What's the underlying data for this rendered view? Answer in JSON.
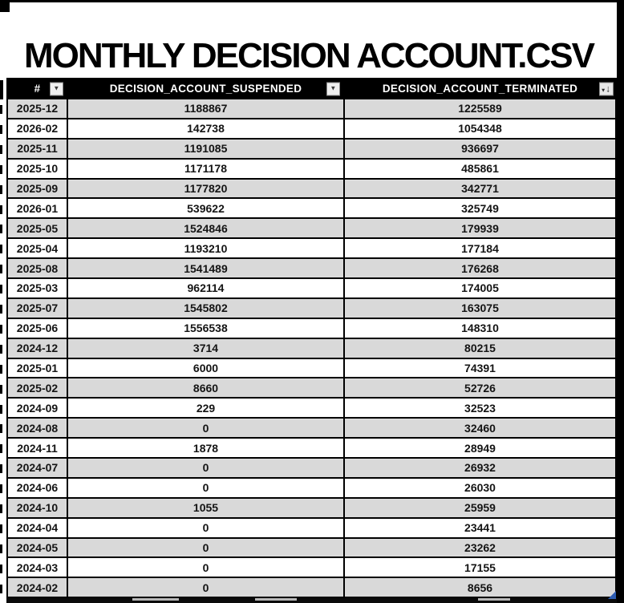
{
  "page": {
    "title": "MONTHLY DECISION ACCOUNT.CSV"
  },
  "icons": {
    "filter_arrow": "▼",
    "sort_tri": "▾",
    "sort_arrow": "↓"
  },
  "table": {
    "columns": [
      {
        "label": "#",
        "control": "filter-dropdown"
      },
      {
        "label": "DECISION_ACCOUNT_SUSPENDED",
        "control": "filter-dropdown"
      },
      {
        "label": "DECISION_ACCOUNT_TERMINATED",
        "control": "sort-descending"
      }
    ],
    "rows": [
      [
        "2025-12",
        "1188867",
        "1225589"
      ],
      [
        "2026-02",
        "142738",
        "1054348"
      ],
      [
        "2025-11",
        "1191085",
        "936697"
      ],
      [
        "2025-10",
        "1171178",
        "485861"
      ],
      [
        "2025-09",
        "1177820",
        "342771"
      ],
      [
        "2026-01",
        "539622",
        "325749"
      ],
      [
        "2025-05",
        "1524846",
        "179939"
      ],
      [
        "2025-04",
        "1193210",
        "177184"
      ],
      [
        "2025-08",
        "1541489",
        "176268"
      ],
      [
        "2025-03",
        "962114",
        "174005"
      ],
      [
        "2025-07",
        "1545802",
        "163075"
      ],
      [
        "2025-06",
        "1556538",
        "148310"
      ],
      [
        "2024-12",
        "3714",
        "80215"
      ],
      [
        "2025-01",
        "6000",
        "74391"
      ],
      [
        "2025-02",
        "8660",
        "52726"
      ],
      [
        "2024-09",
        "229",
        "32523"
      ],
      [
        "2024-08",
        "0",
        "32460"
      ],
      [
        "2024-11",
        "1878",
        "28949"
      ],
      [
        "2024-07",
        "0",
        "26932"
      ],
      [
        "2024-06",
        "0",
        "26030"
      ],
      [
        "2024-10",
        "1055",
        "25959"
      ],
      [
        "2024-04",
        "0",
        "23441"
      ],
      [
        "2024-05",
        "0",
        "23262"
      ],
      [
        "2024-03",
        "0",
        "17155"
      ],
      [
        "2024-02",
        "0",
        "8656"
      ]
    ]
  },
  "colors": {
    "header_bg": "#000000",
    "header_text": "#ffffff",
    "row_bg": "#ffffff",
    "row_alt_bg": "#d9d9d9",
    "grid_border": "#000000",
    "selection_corner": "#2e5db3"
  }
}
